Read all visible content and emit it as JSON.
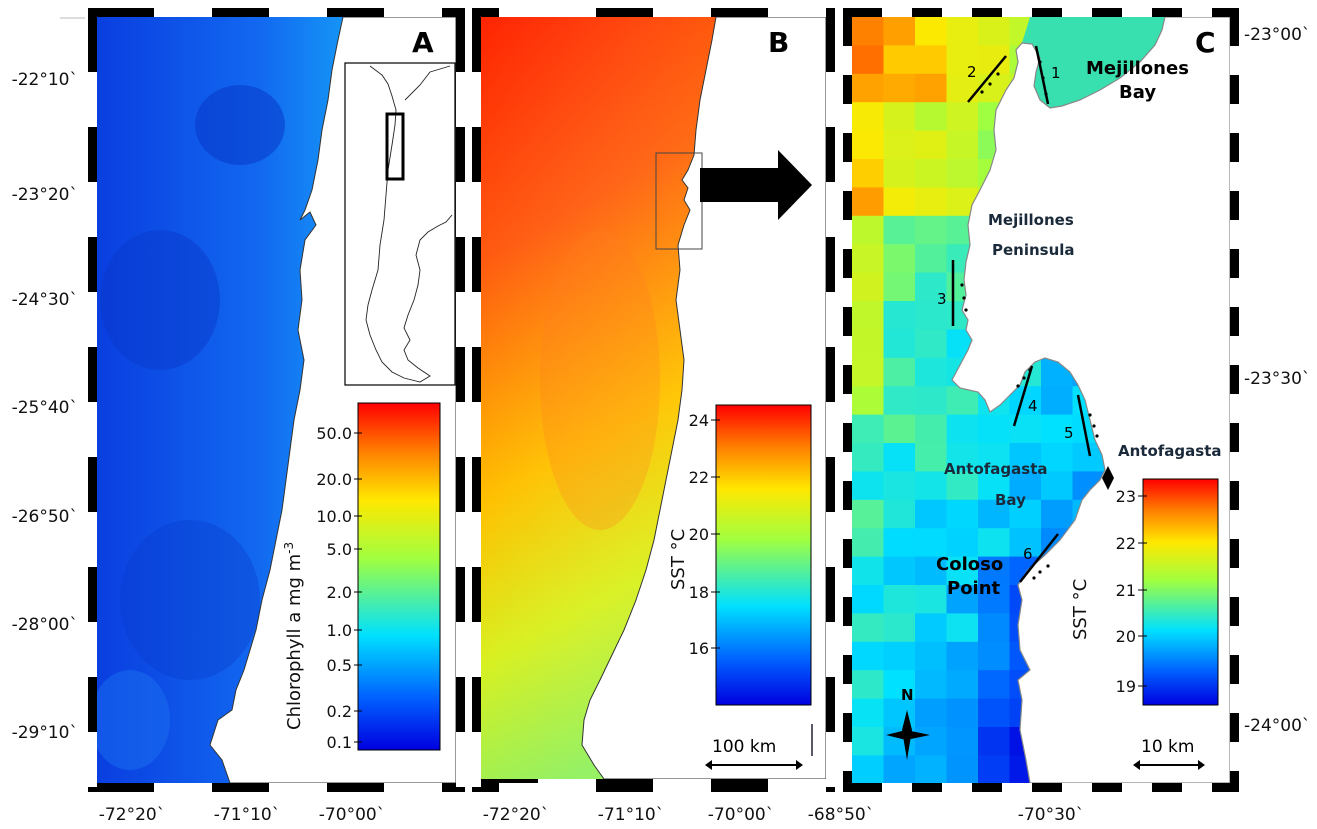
{
  "panels": {
    "a": {
      "label": "A",
      "colorbar_title": "Chlorophyll a mg m",
      "colorbar_title_sup": "3",
      "colorbar_title_minus": "-",
      "ticks": [
        "50.0",
        "20.0",
        "10.0",
        "5.0",
        "2.0",
        "1.0",
        "0.5",
        "0.2",
        "0.1"
      ]
    },
    "b": {
      "label": "B",
      "colorbar_title": "SST °C",
      "ticks": [
        "24",
        "22",
        "20",
        "18",
        "16"
      ],
      "scale": "100 km"
    },
    "c": {
      "label": "C",
      "colorbar_title": "SST °C",
      "ticks": [
        "23",
        "22",
        "21",
        "20",
        "19"
      ],
      "scale": "10 km",
      "north": "N",
      "places": {
        "mejillones_bay_1": "Mejillones",
        "mejillones_bay_2": "Bay",
        "mejillones_pen_1": "Mejillones",
        "mejillones_pen_2": "Peninsula",
        "antofagasta_bay_1": "Antofagasta",
        "antofagasta_bay_2": "Bay",
        "antofagasta": "Antofagasta",
        "coloso_1": "Coloso",
        "coloso_2": "Point"
      },
      "transects": [
        "1",
        "2",
        "3",
        "4",
        "5",
        "6"
      ]
    }
  },
  "axes": {
    "lat_left": [
      "-22°10`",
      "-23°20`",
      "-24°30`",
      "-25°40`",
      "-26°50`",
      "-28°00`",
      "-29°10`"
    ],
    "lat_right": [
      "-23°00`",
      "-23°30`",
      "-24°00`"
    ],
    "lon_bottom": [
      "-72°20`",
      "-71°10`",
      "-70°00`",
      "-72°20`",
      "-71°10`",
      "-70°00`",
      "-68°50`",
      "-70°30`"
    ]
  },
  "colors": {
    "chl_low": "#1060e8",
    "chl_high": "#ff0000",
    "sst_warm": "#ff2a00",
    "sst_cool": "#2050f0"
  }
}
